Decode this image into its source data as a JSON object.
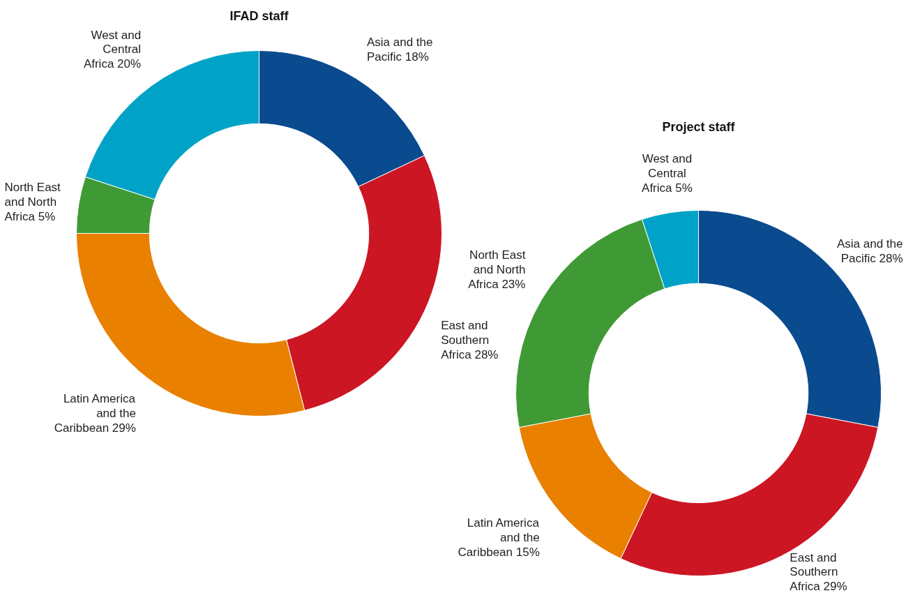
{
  "chart_data": [
    {
      "type": "donut",
      "title": "IFAD staff",
      "categories": [
        "Asia and the Pacific",
        "East and Southern Africa",
        "Latin America and the Caribbean",
        "North East and North Africa",
        "West and Central Africa"
      ],
      "values": [
        18,
        28,
        29,
        5,
        20
      ],
      "value_labels": [
        "18%",
        "28%",
        "29%",
        "5%",
        "20%"
      ],
      "colors": [
        "#0a4a8f",
        "#cc1624",
        "#e98000",
        "#3f9a36",
        "#00a3c7"
      ]
    },
    {
      "type": "donut",
      "title": "Project staff",
      "categories": [
        "Asia and the Pacific",
        "East and Southern Africa",
        "Latin America and the Caribbean",
        "North East and North Africa",
        "West and Central Africa"
      ],
      "values": [
        28,
        29,
        15,
        23,
        5
      ],
      "value_labels": [
        "28%",
        "29%",
        "15%",
        "23%",
        "5%"
      ],
      "colors": [
        "#0a4a8f",
        "#cc1624",
        "#e98000",
        "#3f9a36",
        "#00a3c7"
      ]
    }
  ]
}
